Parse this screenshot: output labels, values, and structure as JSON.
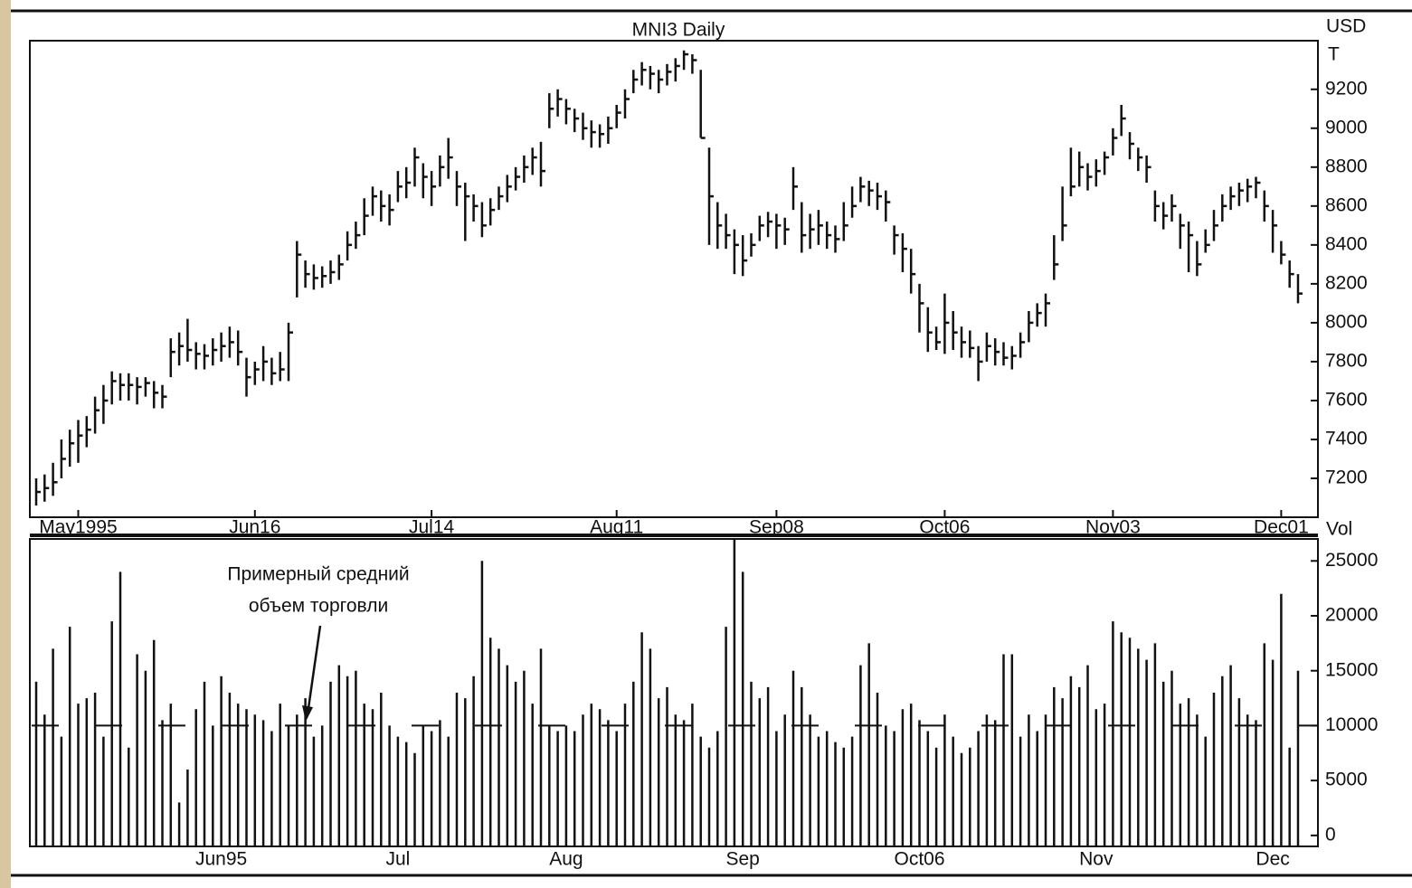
{
  "chart_data": [
    {
      "type": "ohlc",
      "title": "MNI3  Daily",
      "y_label": "USD",
      "y_unit": "T",
      "color": "#111111",
      "categories": [
        null,
        null,
        null,
        null,
        null,
        "May1995",
        null,
        null,
        null,
        null,
        null,
        null,
        null,
        null,
        null,
        null,
        null,
        null,
        null,
        null,
        null,
        null,
        null,
        null,
        null,
        null,
        "Jun16",
        null,
        null,
        null,
        null,
        null,
        null,
        null,
        null,
        null,
        null,
        null,
        null,
        null,
        null,
        null,
        null,
        null,
        null,
        null,
        null,
        "Jul14",
        null,
        null,
        null,
        null,
        null,
        null,
        null,
        null,
        null,
        null,
        null,
        null,
        null,
        null,
        null,
        null,
        null,
        null,
        null,
        null,
        null,
        "Aug11",
        null,
        null,
        null,
        null,
        null,
        null,
        null,
        null,
        null,
        null,
        null,
        null,
        null,
        null,
        null,
        null,
        null,
        null,
        "Sep08",
        null,
        null,
        null,
        null,
        null,
        null,
        null,
        null,
        null,
        null,
        null,
        null,
        null,
        null,
        null,
        null,
        null,
        null,
        null,
        "Oct06",
        null,
        null,
        null,
        null,
        null,
        null,
        null,
        null,
        null,
        null,
        null,
        null,
        null,
        null,
        null,
        null,
        null,
        null,
        null,
        "Nov03",
        null,
        null,
        null,
        null,
        null,
        null,
        null,
        null,
        null,
        null,
        null,
        null,
        null,
        null,
        null,
        null,
        null,
        null,
        null,
        "Dec01",
        null,
        null
      ],
      "high": [
        7200,
        7220,
        7280,
        7400,
        7450,
        7500,
        7520,
        7620,
        7680,
        7750,
        7740,
        7740,
        7720,
        7720,
        7700,
        7680,
        7920,
        7950,
        8020,
        7900,
        7890,
        7920,
        7950,
        7980,
        7960,
        7820,
        7800,
        7880,
        7820,
        7850,
        8000,
        8420,
        8320,
        8300,
        8290,
        8320,
        8350,
        8470,
        8520,
        8640,
        8700,
        8680,
        8660,
        8780,
        8800,
        8900,
        8820,
        8780,
        8860,
        8950,
        8780,
        8720,
        8660,
        8620,
        8640,
        8700,
        8760,
        8800,
        8860,
        8900,
        8930,
        9180,
        9200,
        9150,
        9100,
        9080,
        9040,
        9020,
        9060,
        9120,
        9200,
        9300,
        9340,
        9320,
        9300,
        9330,
        9360,
        9400,
        9380,
        9300,
        8900,
        8620,
        8560,
        8480,
        8450,
        8460,
        8550,
        8570,
        8560,
        8540,
        8800,
        8620,
        8560,
        8580,
        8520,
        8500,
        8620,
        8700,
        8750,
        8730,
        8720,
        8680,
        8500,
        8460,
        8380,
        8200,
        8080,
        7980,
        8150,
        8060,
        7980,
        7960,
        7880,
        7950,
        7920,
        7900,
        7880,
        7950,
        8060,
        8100,
        8150,
        8450,
        8700,
        8900,
        8880,
        8820,
        8840,
        8880,
        9000,
        9120,
        8980,
        8900,
        8860,
        8680,
        8620,
        8660,
        8560,
        8520,
        8420,
        8480,
        8580,
        8660,
        8700,
        8720,
        8740,
        8750,
        8680,
        8580,
        8420,
        8320,
        8250
      ],
      "low": [
        7060,
        7080,
        7110,
        7200,
        7260,
        7280,
        7360,
        7430,
        7480,
        7580,
        7600,
        7600,
        7580,
        7620,
        7560,
        7560,
        7720,
        7780,
        7800,
        7760,
        7760,
        7780,
        7800,
        7820,
        7780,
        7620,
        7680,
        7700,
        7680,
        7700,
        7700,
        8130,
        8180,
        8170,
        8180,
        8200,
        8220,
        8320,
        8380,
        8450,
        8550,
        8520,
        8500,
        8620,
        8640,
        8700,
        8640,
        8600,
        8700,
        8740,
        8600,
        8420,
        8520,
        8440,
        8500,
        8580,
        8620,
        8680,
        8720,
        8760,
        8700,
        9000,
        9060,
        9020,
        8980,
        8940,
        8900,
        8900,
        8920,
        9000,
        9050,
        9180,
        9220,
        9200,
        9180,
        9220,
        9240,
        9300,
        9280,
        8950,
        8400,
        8380,
        8380,
        8250,
        8240,
        8340,
        8420,
        8440,
        8380,
        8400,
        8580,
        8360,
        8380,
        8400,
        8380,
        8360,
        8420,
        8540,
        8620,
        8600,
        8580,
        8520,
        8350,
        8260,
        8150,
        7950,
        7850,
        7860,
        7840,
        7860,
        7820,
        7820,
        7700,
        7800,
        7780,
        7780,
        7760,
        7820,
        7900,
        7980,
        7980,
        8220,
        8420,
        8650,
        8700,
        8680,
        8700,
        8760,
        8860,
        8960,
        8840,
        8780,
        8720,
        8520,
        8480,
        8520,
        8380,
        8260,
        8240,
        8360,
        8420,
        8520,
        8580,
        8600,
        8620,
        8640,
        8520,
        8360,
        8300,
        8180,
        8100
      ],
      "close": [
        7130,
        7150,
        7180,
        7300,
        7380,
        7420,
        7450,
        7550,
        7600,
        7700,
        7680,
        7680,
        7670,
        7690,
        7640,
        7620,
        7850,
        7880,
        7860,
        7840,
        7830,
        7860,
        7880,
        7900,
        7850,
        7720,
        7760,
        7800,
        7740,
        7760,
        7950,
        8350,
        8250,
        8230,
        8240,
        8260,
        8300,
        8400,
        8450,
        8550,
        8650,
        8600,
        8580,
        8700,
        8720,
        8850,
        8750,
        8700,
        8800,
        8850,
        8700,
        8650,
        8600,
        8500,
        8580,
        8650,
        8700,
        8750,
        8800,
        8850,
        8780,
        9100,
        9150,
        9100,
        9050,
        9000,
        8980,
        8970,
        9000,
        9080,
        9150,
        9250,
        9300,
        9280,
        9250,
        9290,
        9320,
        9380,
        9350,
        8950,
        8650,
        8500,
        8450,
        8400,
        8320,
        8400,
        8500,
        8520,
        8500,
        8480,
        8700,
        8450,
        8480,
        8500,
        8450,
        8430,
        8500,
        8600,
        8700,
        8680,
        8650,
        8620,
        8450,
        8380,
        8250,
        8100,
        7950,
        7900,
        8000,
        7950,
        7900,
        7870,
        7800,
        7880,
        7850,
        7820,
        7830,
        7900,
        8000,
        8050,
        8100,
        8300,
        8500,
        8700,
        8800,
        8750,
        8780,
        8850,
        8950,
        9050,
        8920,
        8850,
        8800,
        8600,
        8550,
        8600,
        8500,
        8450,
        8300,
        8400,
        8500,
        8600,
        8650,
        8680,
        8700,
        8720,
        8600,
        8500,
        8350,
        8250,
        8150
      ],
      "ylim": [
        7000,
        9450
      ],
      "yticks": [
        7200,
        7400,
        7600,
        7800,
        8000,
        8200,
        8400,
        8600,
        8800,
        9000,
        9200
      ]
    },
    {
      "type": "bar",
      "y_label": "Vol",
      "color": "#111111",
      "annotation": [
        "Примерный средний",
        "объем торговли"
      ],
      "average_value": 10000,
      "categories": [
        null,
        null,
        null,
        null,
        null,
        null,
        null,
        null,
        null,
        null,
        null,
        null,
        null,
        null,
        null,
        null,
        null,
        null,
        null,
        null,
        null,
        null,
        "Jun95",
        null,
        null,
        null,
        null,
        null,
        null,
        null,
        null,
        null,
        null,
        null,
        null,
        null,
        null,
        null,
        null,
        null,
        null,
        null,
        null,
        "Jul",
        null,
        null,
        null,
        null,
        null,
        null,
        null,
        null,
        null,
        null,
        null,
        null,
        null,
        null,
        null,
        null,
        null,
        null,
        null,
        "Aug",
        null,
        null,
        null,
        null,
        null,
        null,
        null,
        null,
        null,
        null,
        null,
        null,
        null,
        null,
        null,
        null,
        null,
        null,
        null,
        null,
        "Sep",
        null,
        null,
        null,
        null,
        null,
        null,
        null,
        null,
        null,
        null,
        null,
        null,
        null,
        null,
        null,
        null,
        null,
        null,
        null,
        null,
        "Oct06",
        null,
        null,
        null,
        null,
        null,
        null,
        null,
        null,
        null,
        null,
        null,
        null,
        null,
        null,
        null,
        null,
        null,
        null,
        null,
        null,
        "Nov",
        null,
        null,
        null,
        null,
        null,
        null,
        null,
        null,
        null,
        null,
        null,
        null,
        null,
        null,
        null,
        null,
        null,
        null,
        null,
        null,
        "Dec",
        null,
        null,
        null
      ],
      "values": [
        14000,
        11000,
        17000,
        9000,
        19000,
        12000,
        12500,
        13000,
        9000,
        19500,
        24000,
        8000,
        16500,
        15000,
        17800,
        10500,
        12000,
        3000,
        6000,
        11500,
        14000,
        10000,
        14500,
        13000,
        12000,
        11500,
        11000,
        10500,
        9500,
        12000,
        10000,
        11000,
        12500,
        9000,
        10000,
        14000,
        15500,
        14500,
        15000,
        12000,
        11500,
        13000,
        10000,
        9000,
        8500,
        7500,
        10000,
        9500,
        10500,
        9000,
        13000,
        12500,
        14500,
        25000,
        18000,
        17000,
        15500,
        14000,
        15000,
        12000,
        17000,
        10000,
        9500,
        10000,
        9500,
        11000,
        12000,
        11500,
        10500,
        9500,
        12000,
        14000,
        18500,
        17000,
        12500,
        13500,
        11000,
        10500,
        12000,
        9000,
        8000,
        9500,
        19000,
        27000,
        24000,
        14000,
        12500,
        13500,
        9500,
        11000,
        15000,
        13500,
        11000,
        9000,
        9500,
        8500,
        8000,
        9000,
        15500,
        17500,
        13000,
        10000,
        9500,
        11500,
        12000,
        10500,
        9500,
        8000,
        11000,
        9000,
        7500,
        8000,
        9500,
        11000,
        10500,
        16500,
        16500,
        9000,
        11000,
        9500,
        11000,
        13500,
        12500,
        14500,
        13500,
        15500,
        11500,
        12000,
        19500,
        18500,
        18000,
        17000,
        16000,
        17500,
        14000,
        15000,
        12000,
        12500,
        11000,
        9000,
        13000,
        14500,
        15500,
        12500,
        11000,
        10500,
        17500,
        16000,
        22000,
        8000,
        15000
      ],
      "ylim": [
        -1000,
        27000
      ],
      "yticks": [
        0,
        5000,
        10000,
        15000,
        20000,
        25000
      ]
    }
  ]
}
